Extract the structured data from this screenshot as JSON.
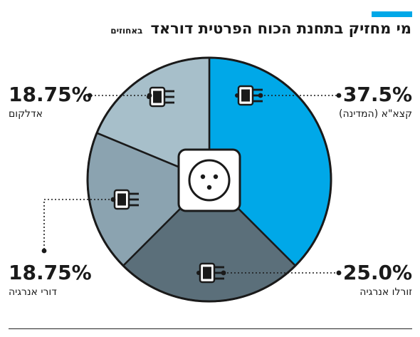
{
  "header": {
    "title": "מי מחזיק בתחנת הכוח הפרטית דוראד",
    "unit": "באחוזים"
  },
  "colors": {
    "accent": "#00a8e8",
    "slices": [
      "#00a8e8",
      "#5b6f7a",
      "#8ba3b0",
      "#a7bfca"
    ],
    "socket_bg": "#ffffff",
    "ink": "#1a1a1a"
  },
  "chart_data": {
    "type": "pie",
    "title": "מי מחזיק בתחנת הכוח הפרטית דוראד",
    "subtitle": "באחוזים",
    "slices": [
      {
        "label": "קצא\"א (המדינה)",
        "value": 37.5,
        "value_label": "37.5%"
      },
      {
        "label": "זורלו אנרגיה",
        "value": 25.0,
        "value_label": "25.0%"
      },
      {
        "label": "דורי אנרגיה",
        "value": 18.75,
        "value_label": "18.75%"
      },
      {
        "label": "אדלקום",
        "value": 18.75,
        "value_label": "18.75%"
      }
    ],
    "start_angle": "12 o'clock",
    "direction": "clockwise",
    "center_icon": "power-socket-icon",
    "slice_icon": "power-plug-icon"
  }
}
